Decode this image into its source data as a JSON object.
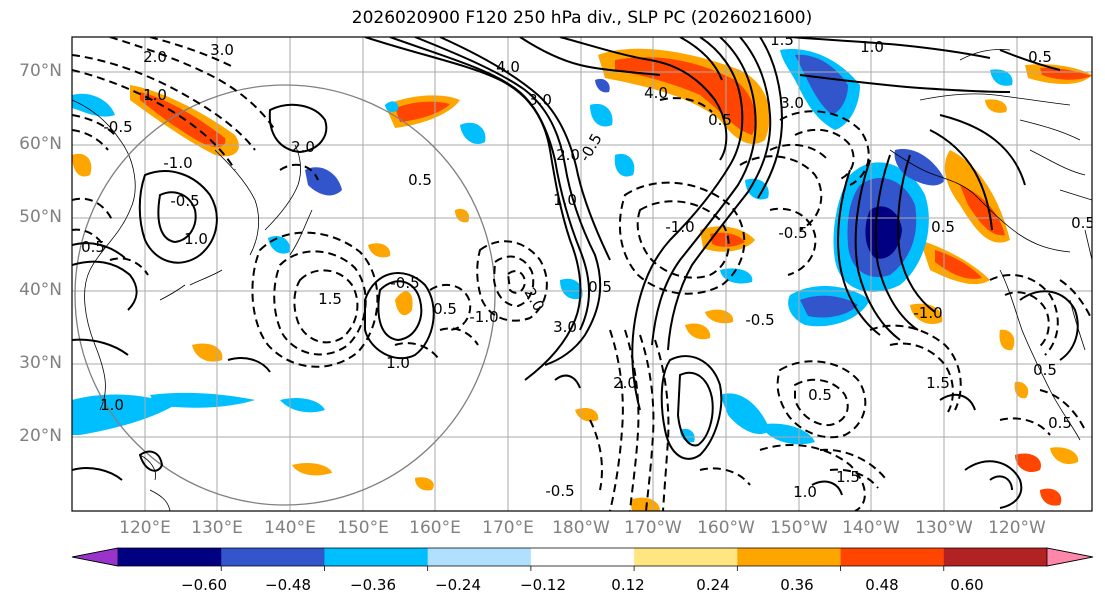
{
  "title": "2026020900 F120 250 hPa div., SLP PC (2026021600)",
  "lat_labels": [
    "70°N",
    "60°N",
    "50°N",
    "40°N",
    "30°N",
    "20°N"
  ],
  "lon_labels": [
    "120°E",
    "130°E",
    "140°E",
    "150°E",
    "160°E",
    "170°E",
    "180°W",
    "170°W",
    "160°W",
    "150°W",
    "140°W",
    "130°W",
    "120°W"
  ],
  "colorbar": {
    "colors": [
      "#9933cc",
      "#000080",
      "#3355cc",
      "#00bfff",
      "#b0e0ff",
      "#ffffff",
      "#ffe680",
      "#ffa500",
      "#ff4500",
      "#b22222",
      "#ff88aa"
    ],
    "tick_labels": [
      "−0.60",
      "−0.48",
      "−0.36",
      "−0.24",
      "−0.12",
      "0.12",
      "0.24",
      "0.36",
      "0.48",
      "0.60"
    ]
  },
  "contour_labels": [
    "3.0",
    "2.0",
    "1.0",
    "-0.5",
    "4.0",
    "3.0",
    "2.0",
    "1.5",
    "1.0",
    "0.5",
    "3.0",
    "4.0",
    "-0.5",
    "0.5",
    "1.0",
    "-1.0",
    "2.0",
    "3.0",
    "-1.0",
    "-0.5",
    "0.5",
    "1.0",
    "2.0",
    "0.5",
    "1.5",
    "-0.5",
    "1.0",
    "0.5",
    "-1.0",
    "-0.5",
    "0.5",
    "1.5",
    "1.0",
    "-1.0",
    "0.5",
    "-0.5",
    "0.5",
    "-0.5",
    "2.0",
    "0.5",
    "1.0",
    "0.5",
    "1.5",
    "0.5"
  ],
  "colors": {
    "frame": "#000000",
    "grid": "#aaaaaa",
    "label_gray": "#808080",
    "contour": "#000000",
    "circle": "#808080"
  }
}
